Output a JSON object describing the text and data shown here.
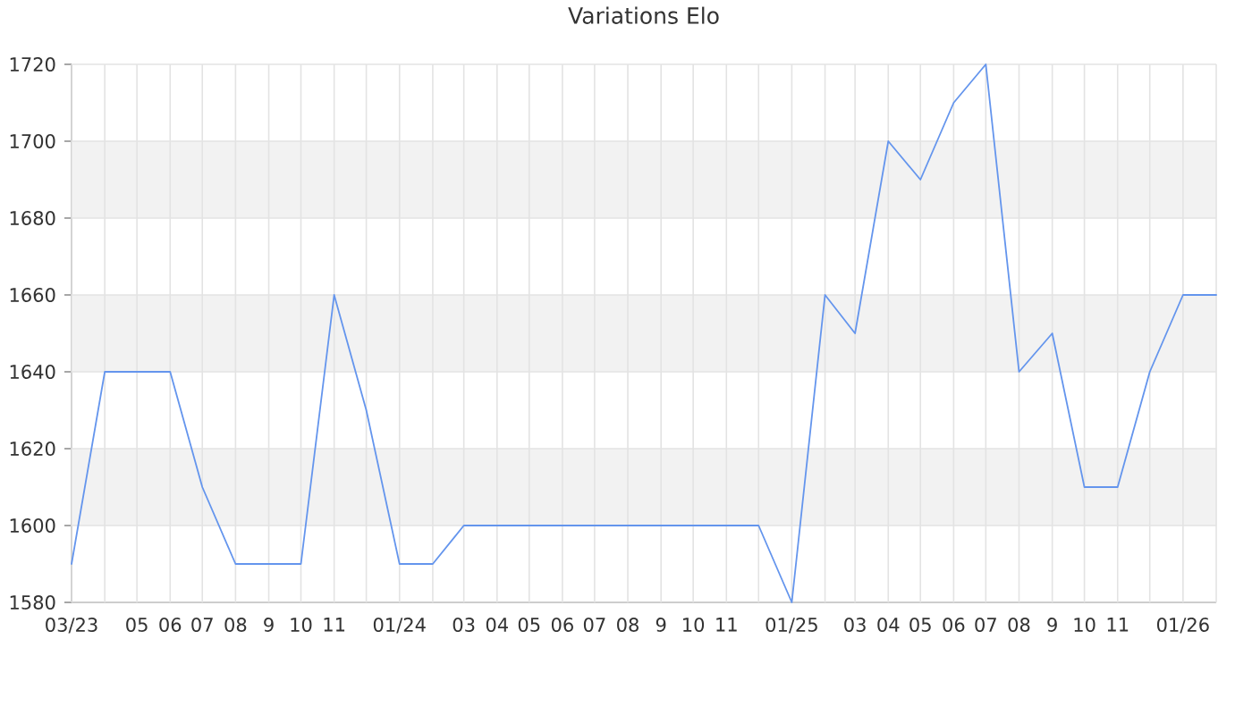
{
  "chart_data": {
    "type": "line",
    "title": "Variations Elo",
    "x": [
      "2023-03",
      "2023-04",
      "2023-05",
      "2023-06",
      "2023-07",
      "2023-08",
      "2023-09",
      "2023-10",
      "2023-11",
      "2023-12",
      "2024-01",
      "2024-02",
      "2024-03",
      "2024-04",
      "2024-05",
      "2024-06",
      "2024-07",
      "2024-08",
      "2024-09",
      "2024-10",
      "2024-11",
      "2024-12",
      "2025-01",
      "2025-02",
      "2025-03",
      "2025-04",
      "2025-05",
      "2025-06",
      "2025-07",
      "2025-08",
      "2025-09",
      "2025-10",
      "2025-11",
      "2025-12",
      "2026-01",
      "2026-02"
    ],
    "values": [
      1590,
      1640,
      1640,
      1640,
      1610,
      1590,
      1590,
      1590,
      1660,
      1630,
      1590,
      1590,
      1600,
      1600,
      1600,
      1600,
      1600,
      1600,
      1600,
      1600,
      1600,
      1600,
      1580,
      1660,
      1650,
      1700,
      1690,
      1710,
      1720,
      1640,
      1650,
      1610,
      1610,
      1640,
      1660,
      1660
    ],
    "color": "#6495ed",
    "xlim": [
      "2023-03",
      "2026-02"
    ],
    "ylim": [
      1580,
      1720
    ],
    "yticks": [
      1580,
      1600,
      1620,
      1640,
      1660,
      1680,
      1700,
      1720
    ],
    "xticks": [
      {
        "value": "2023-03",
        "label": "03/23"
      },
      {
        "value": "2023-04",
        "label": null
      },
      {
        "value": "2023-05",
        "label": "05"
      },
      {
        "value": "2023-06",
        "label": "06"
      },
      {
        "value": "2023-07",
        "label": "07"
      },
      {
        "value": "2023-08",
        "label": "08"
      },
      {
        "value": "2023-09",
        "label": "9"
      },
      {
        "value": "2023-10",
        "label": "10"
      },
      {
        "value": "2023-11",
        "label": "11"
      },
      {
        "value": "2023-12",
        "label": null
      },
      {
        "value": "2024-01",
        "label": "01/24"
      },
      {
        "value": "2024-02",
        "label": null
      },
      {
        "value": "2024-03",
        "label": "03"
      },
      {
        "value": "2024-04",
        "label": "04"
      },
      {
        "value": "2024-05",
        "label": "05"
      },
      {
        "value": "2024-06",
        "label": "06"
      },
      {
        "value": "2024-07",
        "label": "07"
      },
      {
        "value": "2024-08",
        "label": "08"
      },
      {
        "value": "2024-09",
        "label": "9"
      },
      {
        "value": "2024-10",
        "label": "10"
      },
      {
        "value": "2024-11",
        "label": "11"
      },
      {
        "value": "2024-12",
        "label": null
      },
      {
        "value": "2025-01",
        "label": "01/25"
      },
      {
        "value": "2025-02",
        "label": null
      },
      {
        "value": "2025-03",
        "label": "03"
      },
      {
        "value": "2025-04",
        "label": "04"
      },
      {
        "value": "2025-05",
        "label": "05"
      },
      {
        "value": "2025-06",
        "label": "06"
      },
      {
        "value": "2025-07",
        "label": "07"
      },
      {
        "value": "2025-08",
        "label": "08"
      },
      {
        "value": "2025-09",
        "label": "9"
      },
      {
        "value": "2025-10",
        "label": "10"
      },
      {
        "value": "2025-11",
        "label": "11"
      },
      {
        "value": "2025-12",
        "label": null
      },
      {
        "value": "2026-01",
        "label": "01/26"
      },
      {
        "value": "2026-02",
        "label": null
      }
    ],
    "grid": true,
    "bands": [
      {
        "axis": "y",
        "from": 1600,
        "to": 1620,
        "color": "#f2f2f2"
      },
      {
        "axis": "y",
        "from": 1640,
        "to": 1660,
        "color": "#f2f2f2"
      },
      {
        "axis": "y",
        "from": 1680,
        "to": 1700,
        "color": "#f2f2f2"
      }
    ]
  }
}
